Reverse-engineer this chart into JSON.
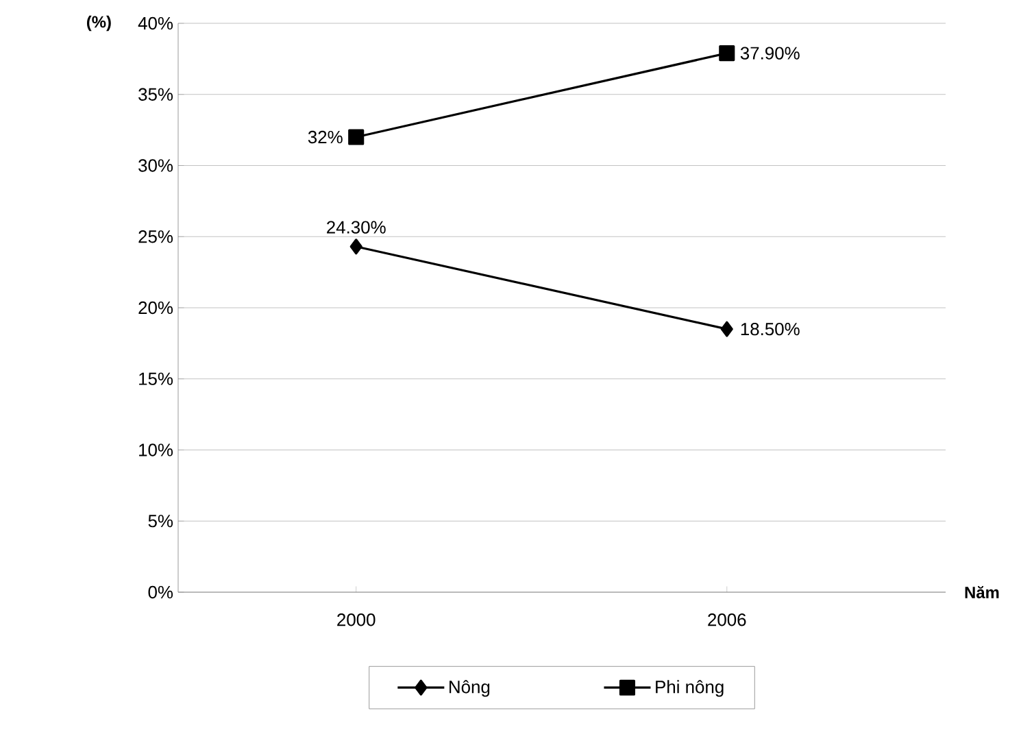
{
  "chart_data": {
    "type": "line",
    "ylabel": "(%)",
    "xlabel": "Năm",
    "categories": [
      "2000",
      "2006"
    ],
    "series": [
      {
        "name": "Nông",
        "color": "#000000",
        "marker": "diamond",
        "values": [
          24.3,
          18.5
        ],
        "value_labels": [
          "24.30%",
          "18.50%"
        ]
      },
      {
        "name": "Phi nông",
        "color": "#000000",
        "marker": "square",
        "values": [
          32,
          37.9
        ],
        "value_labels": [
          "32%",
          "37.90%"
        ]
      }
    ],
    "ylim": [
      0,
      40
    ],
    "yticks": [
      {
        "value": 0,
        "label": "0%"
      },
      {
        "value": 5,
        "label": "5%"
      },
      {
        "value": 10,
        "label": "10%"
      },
      {
        "value": 15,
        "label": "15%"
      },
      {
        "value": 20,
        "label": "20%"
      },
      {
        "value": 25,
        "label": "25%"
      },
      {
        "value": 30,
        "label": "30%"
      },
      {
        "value": 35,
        "label": "35%"
      },
      {
        "value": 40,
        "label": "40%"
      }
    ],
    "grid": "y",
    "legend": "bottom",
    "line_style": "solid"
  }
}
